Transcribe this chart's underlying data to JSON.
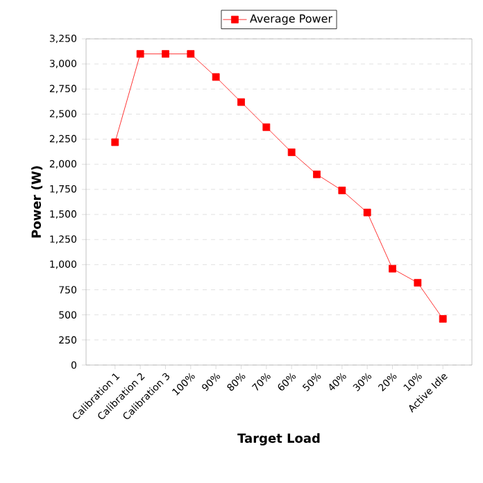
{
  "chart_data": {
    "type": "line",
    "xlabel": "Target Load",
    "ylabel": "Power (W)",
    "categories": [
      "Calibration 1",
      "Calibration 2",
      "Calibration 3",
      "100%",
      "90%",
      "80%",
      "70%",
      "60%",
      "50%",
      "40%",
      "30%",
      "20%",
      "10%",
      "Active Idle"
    ],
    "series": [
      {
        "name": "Average Power",
        "color": "#ff0000",
        "values": [
          2220,
          3100,
          3100,
          3100,
          2870,
          2620,
          2370,
          2120,
          1900,
          1740,
          1520,
          960,
          820,
          460
        ]
      }
    ],
    "ylim": [
      0,
      3250
    ],
    "yticks": [
      0,
      250,
      500,
      750,
      {
        "value": 1000,
        "label": "1,000"
      },
      {
        "value": 1250,
        "label": "1,250"
      },
      {
        "value": 1500,
        "label": "1,500"
      },
      {
        "value": 1750,
        "label": "1,750"
      },
      {
        "value": 2000,
        "label": "2,000"
      },
      {
        "value": 2250,
        "label": "2,250"
      },
      {
        "value": 2500,
        "label": "2,500"
      },
      {
        "value": 2750,
        "label": "2,750"
      },
      {
        "value": 3000,
        "label": "3,000"
      },
      {
        "value": 3250,
        "label": "3,250"
      }
    ],
    "grid": "y",
    "legend": "top",
    "marker": "square",
    "line_style": "solid"
  }
}
